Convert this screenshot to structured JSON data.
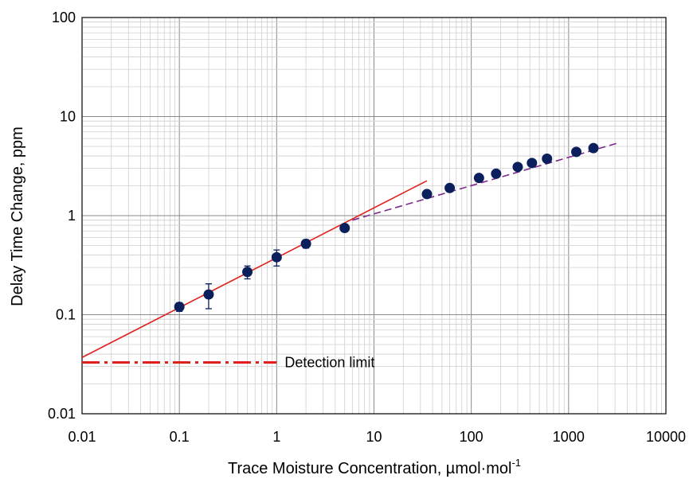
{
  "chart_data": {
    "type": "scatter",
    "title": "",
    "xlabel": "Trace Moisture Concentration, µmol·mol",
    "xlabel_superscript": "-1",
    "ylabel": "Delay Time Change, ppm",
    "xscale": "log",
    "yscale": "log",
    "xlim": [
      0.01,
      10000
    ],
    "ylim": [
      0.01,
      100
    ],
    "grid": true,
    "x_tick_labels": [
      "0.01",
      "0.1",
      "1",
      "10",
      "100",
      "1000",
      "10000"
    ],
    "y_tick_labels": [
      "0.01",
      "0.1",
      "1",
      "10",
      "100"
    ],
    "series": [
      {
        "marker": "circle",
        "color": "#0b1f5c",
        "points": [
          {
            "x": 0.1,
            "y": 0.12,
            "err": 0.012
          },
          {
            "x": 0.2,
            "y": 0.16,
            "err": 0.045
          },
          {
            "x": 0.5,
            "y": 0.27,
            "err": 0.04
          },
          {
            "x": 1,
            "y": 0.38,
            "err": 0.07
          },
          {
            "x": 2,
            "y": 0.52,
            "err": 0.05
          },
          {
            "x": 5,
            "y": 0.75,
            "err": 0.04
          },
          {
            "x": 35,
            "y": 1.65
          },
          {
            "x": 60,
            "y": 1.9
          },
          {
            "x": 120,
            "y": 2.4
          },
          {
            "x": 180,
            "y": 2.65
          },
          {
            "x": 300,
            "y": 3.1
          },
          {
            "x": 420,
            "y": 3.4
          },
          {
            "x": 600,
            "y": 3.75
          },
          {
            "x": 1200,
            "y": 4.4
          },
          {
            "x": 1800,
            "y": 4.8
          }
        ]
      }
    ],
    "fits": [
      {
        "style": "solid",
        "color": "#e0201b",
        "from": [
          0.01,
          0.037
        ],
        "to": [
          35,
          2.25
        ]
      },
      {
        "style": "dashed",
        "color": "#7b2a8a",
        "from": [
          6,
          0.9
        ],
        "to": [
          3200,
          5.4
        ]
      }
    ],
    "reference_lines": [
      {
        "label": "Detection limit",
        "y": 0.033,
        "x_from": 0.01,
        "x_to": 1,
        "style": "dash-dot",
        "color": "#e0201b"
      }
    ]
  }
}
